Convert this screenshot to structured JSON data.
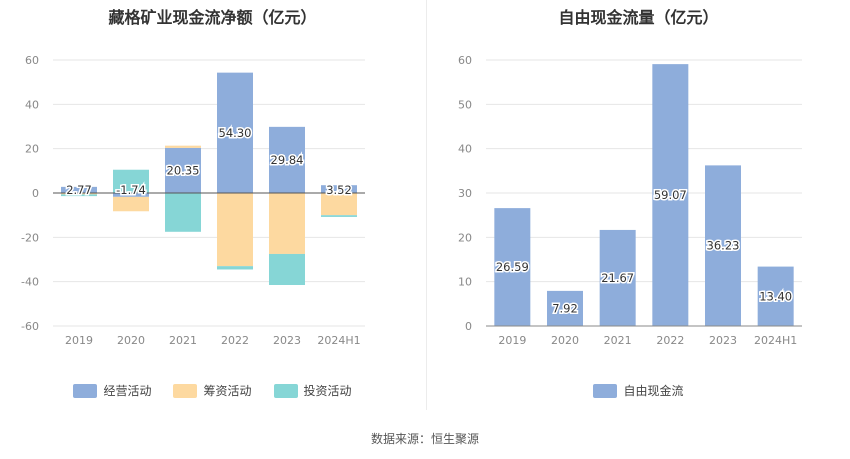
{
  "charts": [
    {
      "type": "bar",
      "stacked": true,
      "title": "藏格矿业现金流净额（亿元）",
      "categories": [
        "2019",
        "2020",
        "2021",
        "2022",
        "2023",
        "2024H1"
      ],
      "ylim": [
        -60,
        60
      ],
      "yticks": [
        60,
        40,
        20,
        0,
        -20,
        -40,
        -60
      ],
      "grid": true,
      "legend_position": "bottom",
      "series": [
        {
          "name": "经营活动",
          "color": "#8eaddb",
          "values": [
            2.77,
            -1.74,
            20.35,
            54.3,
            29.84,
            3.52
          ],
          "labels": [
            "2.77",
            "-1.74",
            "20.35",
            "54.30",
            "29.84",
            "3.52"
          ]
        },
        {
          "name": "筹资活动",
          "color": "#fdd9a0",
          "values": [
            -0.6,
            -6.5,
            1.0,
            -33.0,
            -27.5,
            -10.0
          ]
        },
        {
          "name": "投资活动",
          "color": "#86d6d6",
          "values": [
            -0.8,
            10.5,
            -17.5,
            -1.5,
            -14.0,
            -0.8
          ]
        }
      ]
    },
    {
      "type": "bar",
      "title": "自由现金流量（亿元）",
      "categories": [
        "2019",
        "2020",
        "2021",
        "2022",
        "2023",
        "2024H1"
      ],
      "ylim": [
        0,
        60
      ],
      "yticks": [
        60,
        50,
        40,
        30,
        20,
        10,
        0
      ],
      "grid": true,
      "legend_position": "bottom",
      "series": [
        {
          "name": "自由现金流",
          "color": "#8eaddb",
          "values": [
            26.59,
            7.92,
            21.67,
            59.07,
            36.23,
            13.4
          ],
          "labels": [
            "26.59",
            "7.92",
            "21.67",
            "59.07",
            "36.23",
            "13.40"
          ]
        }
      ]
    }
  ],
  "source": "数据来源：恒生聚源",
  "chart_data": [
    {
      "type": "bar",
      "title": "藏格矿业现金流净额（亿元）",
      "categories": [
        "2019",
        "2020",
        "2021",
        "2022",
        "2023",
        "2024H1"
      ],
      "ylim": [
        -60,
        60
      ],
      "series": [
        {
          "name": "经营活动",
          "values": [
            2.77,
            -1.74,
            20.35,
            54.3,
            29.84,
            3.52
          ]
        },
        {
          "name": "筹资活动",
          "values": [
            -0.6,
            -6.5,
            1.0,
            -33.0,
            -27.5,
            -10.0
          ]
        },
        {
          "name": "投资活动",
          "values": [
            -0.8,
            10.5,
            -17.5,
            -1.5,
            -14.0,
            -0.8
          ]
        }
      ]
    },
    {
      "type": "bar",
      "title": "自由现金流量（亿元）",
      "categories": [
        "2019",
        "2020",
        "2021",
        "2022",
        "2023",
        "2024H1"
      ],
      "ylim": [
        0,
        60
      ],
      "series": [
        {
          "name": "自由现金流",
          "values": [
            26.59,
            7.92,
            21.67,
            59.07,
            36.23,
            13.4
          ]
        }
      ]
    }
  ]
}
